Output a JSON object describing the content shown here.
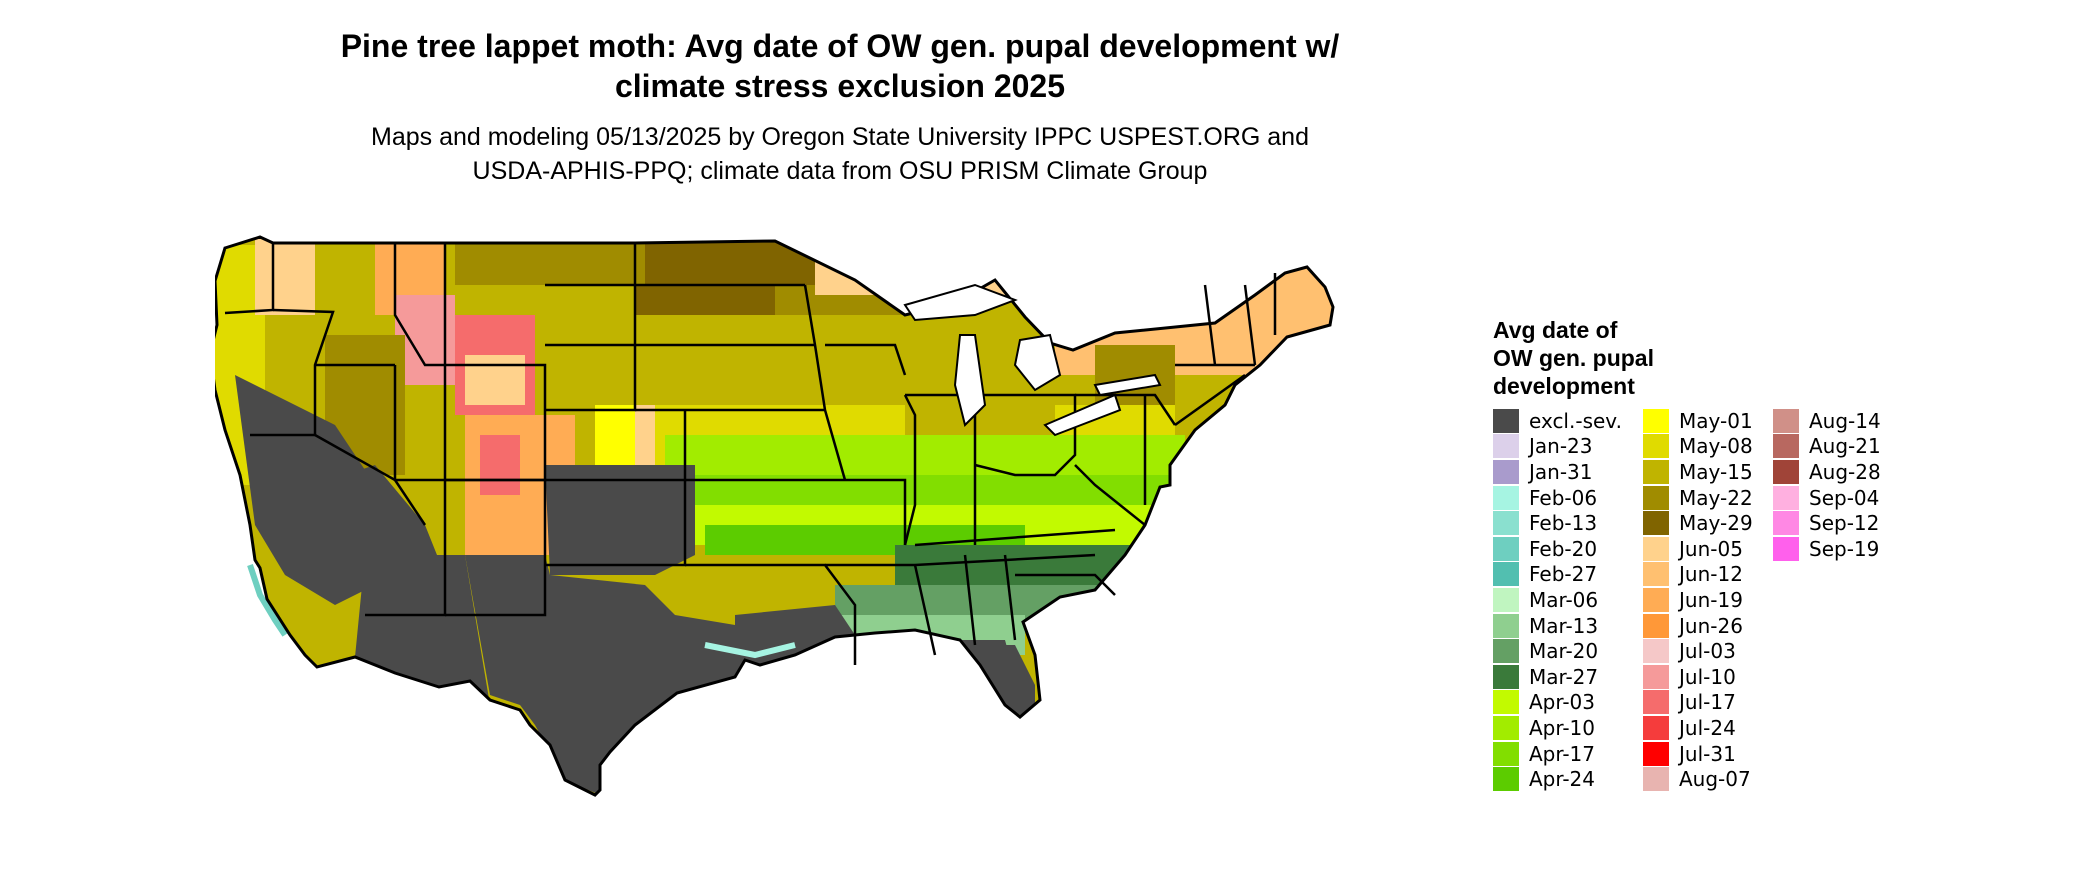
{
  "title_line1": "Pine tree lappet moth: Avg date of OW gen. pupal development w/",
  "title_line2": "climate stress exclusion 2025",
  "subtitle_line1": "Maps and modeling 05/13/2025 by Oregon State University IPPC USPEST.ORG and",
  "subtitle_line2": "USDA-APHIS-PPQ; climate data from OSU PRISM Climate Group",
  "legend": {
    "title_line1": "Avg date of",
    "title_line2": "OW gen. pupal",
    "title_line3": "development",
    "col1": [
      {
        "label": "excl.-sev.",
        "color": "#4a4a4a"
      },
      {
        "label": "Jan-23",
        "color": "#dcd0ea"
      },
      {
        "label": "Jan-31",
        "color": "#a99bcc"
      },
      {
        "label": "Feb-06",
        "color": "#a6f4e2"
      },
      {
        "label": "Feb-13",
        "color": "#8ae0cf"
      },
      {
        "label": "Feb-20",
        "color": "#6ecfc0"
      },
      {
        "label": "Feb-27",
        "color": "#52bfb0"
      },
      {
        "label": "Mar-06",
        "color": "#c0f5c0"
      },
      {
        "label": "Mar-13",
        "color": "#8fcf8f"
      },
      {
        "label": "Mar-20",
        "color": "#64a064"
      },
      {
        "label": "Mar-27",
        "color": "#3a7a3a"
      },
      {
        "label": "Apr-03",
        "color": "#c2fa00"
      },
      {
        "label": "Apr-10",
        "color": "#a2ec00"
      },
      {
        "label": "Apr-17",
        "color": "#82de00"
      },
      {
        "label": "Apr-24",
        "color": "#5ccc00"
      }
    ],
    "col2": [
      {
        "label": "May-01",
        "color": "#ffff00"
      },
      {
        "label": "May-08",
        "color": "#e0db00"
      },
      {
        "label": "May-15",
        "color": "#c0b400"
      },
      {
        "label": "May-22",
        "color": "#a08c00"
      },
      {
        "label": "May-29",
        "color": "#806400"
      },
      {
        "label": "Jun-05",
        "color": "#ffd28c"
      },
      {
        "label": "Jun-12",
        "color": "#ffc070"
      },
      {
        "label": "Jun-19",
        "color": "#ffac54"
      },
      {
        "label": "Jun-26",
        "color": "#ff9838"
      },
      {
        "label": "Jul-03",
        "color": "#f5c8c8"
      },
      {
        "label": "Jul-10",
        "color": "#f59a9a"
      },
      {
        "label": "Jul-17",
        "color": "#f56c6c"
      },
      {
        "label": "Jul-24",
        "color": "#f53c3c"
      },
      {
        "label": "Jul-31",
        "color": "#ff0000"
      },
      {
        "label": "Aug-07",
        "color": "#e8b4b0"
      }
    ],
    "col3": [
      {
        "label": "Aug-14",
        "color": "#d09088"
      },
      {
        "label": "Aug-21",
        "color": "#b86860"
      },
      {
        "label": "Aug-28",
        "color": "#a04438"
      },
      {
        "label": "Sep-04",
        "color": "#ffb0e0"
      },
      {
        "label": "Sep-12",
        "color": "#ff88e4"
      },
      {
        "label": "Sep-19",
        "color": "#ff60ec"
      }
    ]
  }
}
